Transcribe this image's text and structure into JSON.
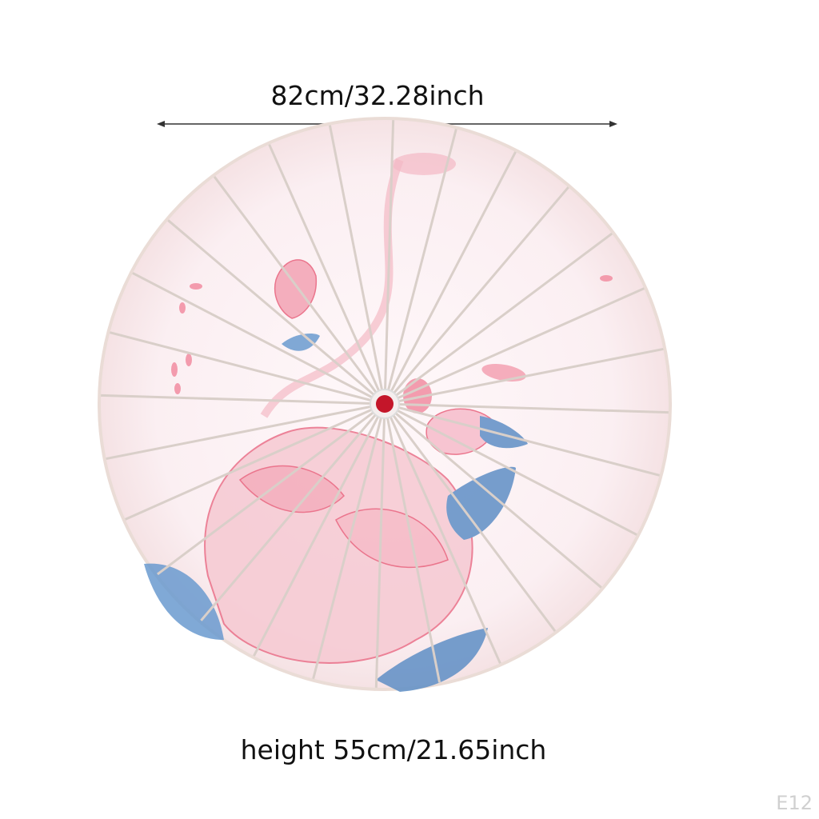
{
  "dimensions": {
    "width_label": "82cm/32.28inch",
    "height_label": "height 55cm/21.65inch"
  },
  "product_code": "E12",
  "colors": {
    "canopy": "#fbf2f4",
    "pink": "#ef8a9e",
    "blue": "#5b8fc7",
    "rib": "#d9cfc9",
    "hub": "#c4162a"
  }
}
